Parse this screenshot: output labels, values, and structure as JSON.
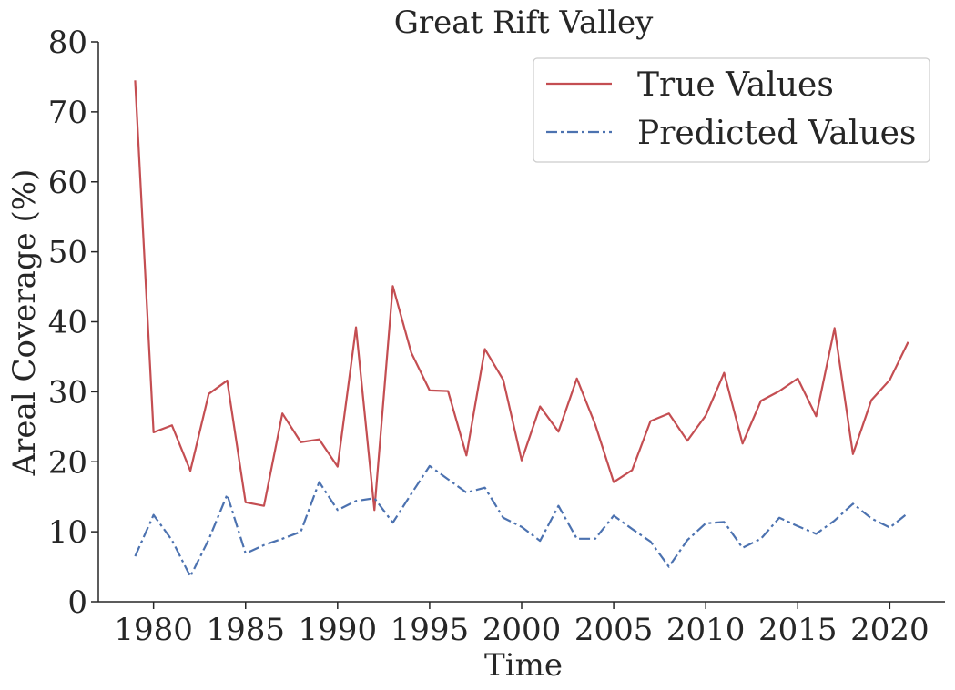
{
  "chart_data": {
    "type": "line",
    "title": "Great Rift Valley",
    "xlabel": "Time",
    "ylabel": "Areal Coverage (%)",
    "xlim": [
      1977,
      2023
    ],
    "ylim": [
      0,
      80
    ],
    "xticks": [
      1980,
      1985,
      1990,
      1995,
      2000,
      2005,
      2010,
      2015,
      2020
    ],
    "yticks": [
      0,
      10,
      20,
      30,
      40,
      50,
      60,
      70,
      80
    ],
    "grid": false,
    "legend_position": "top-right",
    "x": [
      1979,
      1980,
      1981,
      1982,
      1983,
      1984,
      1985,
      1986,
      1987,
      1988,
      1989,
      1990,
      1991,
      1992,
      1993,
      1994,
      1995,
      1996,
      1997,
      1998,
      1999,
      2000,
      2001,
      2002,
      2003,
      2004,
      2005,
      2006,
      2007,
      2008,
      2009,
      2010,
      2011,
      2012,
      2013,
      2014,
      2015,
      2016,
      2017,
      2018,
      2019,
      2020,
      2021
    ],
    "series": [
      {
        "name": "True Values",
        "color": "#c44e52",
        "style": "solid",
        "values": [
          74.5,
          24.2,
          25.2,
          18.7,
          29.7,
          31.6,
          14.2,
          13.7,
          26.9,
          22.8,
          23.2,
          19.3,
          39.2,
          13.1,
          45.1,
          35.6,
          30.2,
          30.1,
          20.9,
          36.1,
          31.7,
          20.2,
          27.9,
          24.3,
          31.9,
          25.3,
          17.1,
          18.8,
          25.8,
          26.9,
          23.0,
          26.6,
          32.7,
          22.6,
          28.7,
          30.1,
          31.9,
          26.5,
          39.1,
          21.1,
          28.8,
          31.7,
          37.1
        ]
      },
      {
        "name": "Predicted Values",
        "color": "#4c72b0",
        "style": "dashdot",
        "values": [
          6.5,
          12.4,
          8.8,
          3.6,
          8.9,
          15.3,
          6.9,
          8.1,
          9.0,
          10.0,
          17.1,
          13.1,
          14.4,
          14.8,
          11.3,
          15.4,
          19.4,
          17.5,
          15.6,
          16.3,
          12.0,
          10.7,
          8.7,
          13.7,
          9.0,
          9.0,
          12.3,
          10.4,
          8.6,
          5.0,
          8.8,
          11.2,
          11.4,
          7.7,
          9.0,
          12.0,
          10.8,
          9.7,
          11.6,
          14.0,
          11.9,
          10.6,
          12.7
        ]
      }
    ]
  }
}
